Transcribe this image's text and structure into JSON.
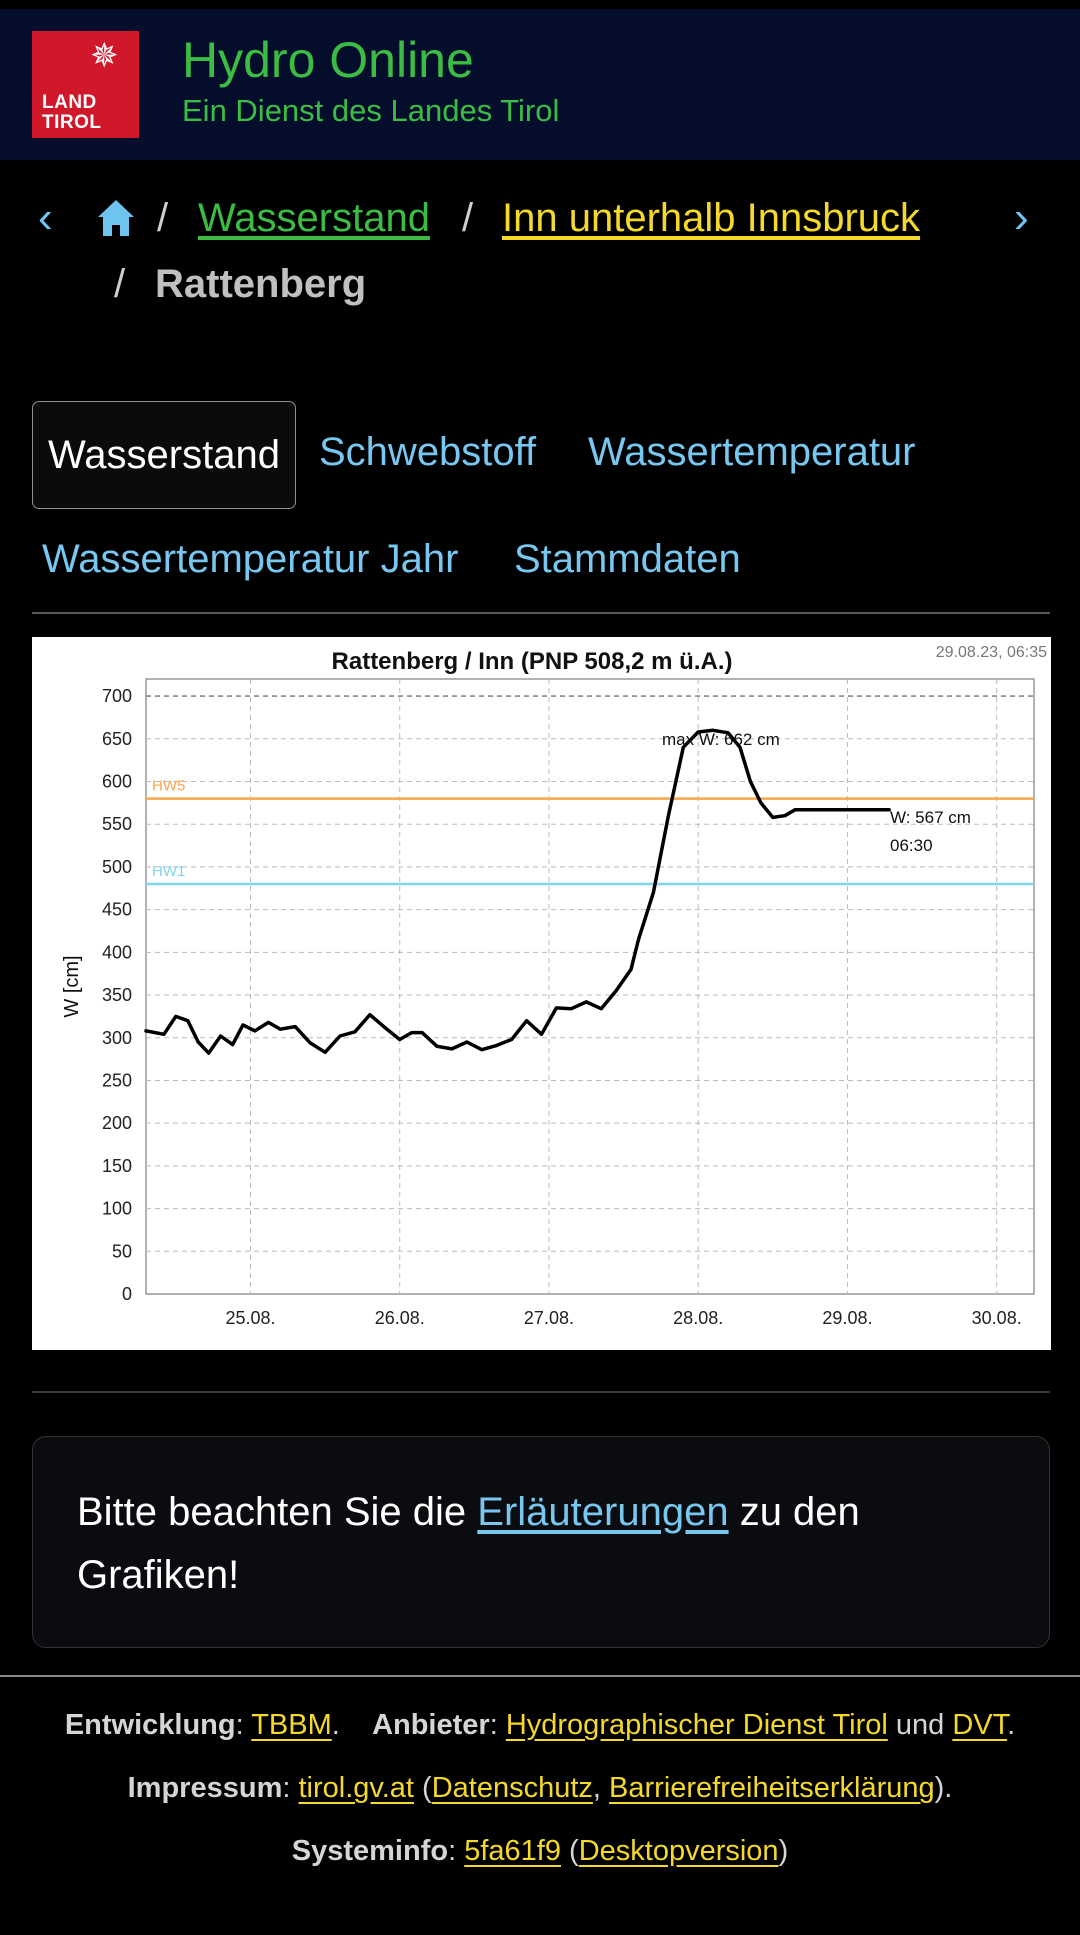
{
  "header": {
    "logo_line1": "LAND",
    "logo_line2": "TIROL",
    "title": "Hydro Online",
    "subtitle": "Ein Dienst des Landes Tirol"
  },
  "breadcrumb": {
    "separator": "/",
    "items": [
      "Wasserstand",
      "Inn unterhalb Innsbruck",
      "Rattenberg"
    ]
  },
  "tabs": [
    {
      "label": "Wasserstand",
      "active": true
    },
    {
      "label": "Schwebstoff",
      "active": false
    },
    {
      "label": "Wassertemperatur",
      "active": false
    },
    {
      "label": "Wassertemperatur Jahr",
      "active": false
    },
    {
      "label": "Stammdaten",
      "active": false
    }
  ],
  "chart_data": {
    "type": "line",
    "title": "Rattenberg / Inn (PNP 508,2 m ü.A.)",
    "timestamp": "29.08.23, 06:35",
    "ylabel": "W [cm]",
    "xlabel": "",
    "ylim": [
      0,
      720
    ],
    "yticks": [
      0,
      50,
      100,
      150,
      200,
      250,
      300,
      350,
      400,
      450,
      500,
      550,
      600,
      650,
      700
    ],
    "xlim": [
      24.3,
      30.25
    ],
    "xticks": [
      {
        "x": 25,
        "label": "25.08."
      },
      {
        "x": 26,
        "label": "26.08."
      },
      {
        "x": 27,
        "label": "27.08."
      },
      {
        "x": 28,
        "label": "28.08."
      },
      {
        "x": 29,
        "label": "29.08."
      },
      {
        "x": 30,
        "label": "30.08."
      }
    ],
    "grid": true,
    "reference_lines": [
      {
        "name": "HW5",
        "value": 580,
        "color": "#f7a74a"
      },
      {
        "name": "HW1",
        "value": 480,
        "color": "#7fd6ee"
      }
    ],
    "dashed_top_line": 700,
    "annotations": {
      "max_label": "max W: 662 cm",
      "current_label": "W: 567 cm",
      "current_time": "06:30"
    },
    "series": [
      {
        "color": "#000000",
        "x": [
          24.3,
          24.42,
          24.5,
          24.58,
          24.65,
          24.72,
          24.8,
          24.88,
          24.95,
          25.03,
          25.12,
          25.2,
          25.3,
          25.4,
          25.5,
          25.6,
          25.7,
          25.8,
          25.9,
          26.0,
          26.08,
          26.15,
          26.25,
          26.35,
          26.45,
          26.55,
          26.65,
          26.75,
          26.85,
          26.95,
          27.05,
          27.15,
          27.25,
          27.35,
          27.45,
          27.55,
          27.6,
          27.7,
          27.8,
          27.9,
          28.0,
          28.1,
          28.2,
          28.28,
          28.35,
          28.42,
          28.5,
          28.58,
          28.65,
          28.75,
          28.82,
          28.9,
          28.98,
          29.05,
          29.15,
          29.22,
          29.28
        ],
        "values": [
          308,
          304,
          325,
          320,
          295,
          282,
          302,
          292,
          315,
          308,
          318,
          310,
          313,
          294,
          283,
          302,
          307,
          327,
          312,
          298,
          306,
          306,
          290,
          287,
          295,
          286,
          291,
          298,
          320,
          304,
          335,
          334,
          342,
          334,
          355,
          380,
          415,
          470,
          560,
          640,
          658,
          660,
          657,
          640,
          600,
          575,
          558,
          560,
          567,
          567,
          567,
          567,
          567,
          567,
          567,
          567,
          567
        ]
      }
    ]
  },
  "note": {
    "before": "Bitte beachten Sie die ",
    "link": "Erläuterungen",
    "after": " zu den Grafiken!"
  },
  "footer": {
    "entwicklung_label": "Entwicklung",
    "entwicklung_link": "TBBM",
    "anbieter_label": "Anbieter",
    "anbieter_link1": "Hydrographischer Dienst Tirol",
    "and_word": "und",
    "anbieter_link2": "DVT",
    "impressum_label": "Impressum",
    "impressum_link": "tirol.gv.at",
    "datenschutz_link": "Datenschutz",
    "barriere_link": "Barrierefreiheitserklärung",
    "systeminfo_label": "Systeminfo",
    "systeminfo_link": "5fa61f9",
    "desktop_link": "Desktopversion"
  }
}
